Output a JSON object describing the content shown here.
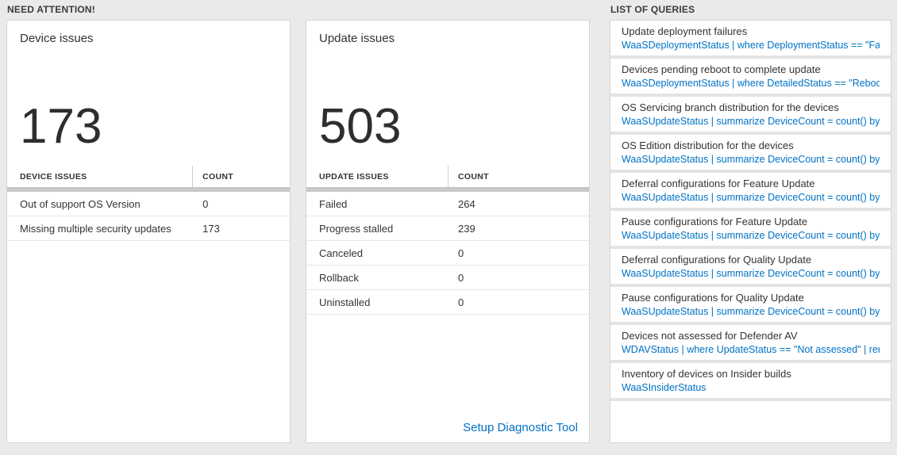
{
  "colors": {
    "accent_blue": "#0072c6",
    "page_background": "#eaeaea",
    "grid_divider": "#c9c9c9"
  },
  "need_attention": {
    "header": "NEED ATTENTION!"
  },
  "device_card": {
    "title": "Device issues",
    "big_number": "173",
    "columns": {
      "issue": "DEVICE ISSUES",
      "count": "COUNT"
    },
    "rows": [
      {
        "label": "Out of support OS Version",
        "value": "0"
      },
      {
        "label": "Missing multiple security updates",
        "value": "173"
      }
    ]
  },
  "update_card": {
    "title": "Update issues",
    "big_number": "503",
    "columns": {
      "issue": "UPDATE ISSUES",
      "count": "COUNT"
    },
    "rows": [
      {
        "label": "Failed",
        "value": "264"
      },
      {
        "label": "Progress stalled",
        "value": "239"
      },
      {
        "label": "Canceled",
        "value": "0"
      },
      {
        "label": "Rollback",
        "value": "0"
      },
      {
        "label": "Uninstalled",
        "value": "0"
      }
    ],
    "footer_link": "Setup Diagnostic Tool"
  },
  "queries": {
    "header": "LIST OF QUERIES",
    "items": [
      {
        "title": "Update deployment failures",
        "query": "WaaSDeploymentStatus | where DeploymentStatus == \"Failed\" |..."
      },
      {
        "title": "Devices pending reboot to complete update",
        "query": "WaaSDeploymentStatus | where DetailedStatus == \"Reboot pend..."
      },
      {
        "title": "OS Servicing branch distribution for the devices",
        "query": "WaaSUpdateStatus | summarize DeviceCount = count() by OSSer..."
      },
      {
        "title": "OS Edition distribution for the devices",
        "query": "WaaSUpdateStatus | summarize DeviceCount = count() by OSEdit..."
      },
      {
        "title": "Deferral configurations for Feature Update",
        "query": "WaaSUpdateStatus | summarize DeviceCount = count() by Featur..."
      },
      {
        "title": "Pause configurations for Feature Update",
        "query": "WaaSUpdateStatus | summarize DeviceCount = count() by Featur..."
      },
      {
        "title": "Deferral configurations for Quality Update",
        "query": "WaaSUpdateStatus | summarize DeviceCount = count() by Qualit..."
      },
      {
        "title": "Pause configurations for Quality Update",
        "query": "WaaSUpdateStatus | summarize DeviceCount = count() by Qualit..."
      },
      {
        "title": "Devices not assessed for Defender AV",
        "query": "WDAVStatus | where UpdateStatus == \"Not assessed\" | render ta..."
      },
      {
        "title": "Inventory of devices on Insider builds",
        "query": "WaaSInsiderStatus"
      }
    ]
  }
}
